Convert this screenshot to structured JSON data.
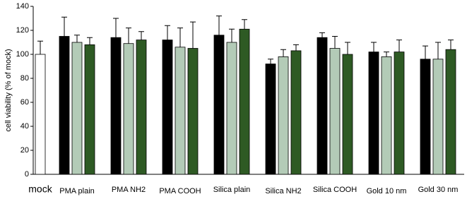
{
  "chart_data": {
    "type": "bar",
    "y_label": "cell viability (% of mock)",
    "categories": [
      "mock",
      "PMA plain",
      "PMA NH2",
      "PMA COOH",
      "Silica plain",
      "Silica NH2",
      "Silica COOH",
      "Gold 10 nm",
      "Gold 30 nm"
    ],
    "series": [
      {
        "color": "#ffffff",
        "values": [
          100,
          null,
          null,
          null,
          null,
          null,
          null,
          null,
          null
        ],
        "errors": [
          11,
          null,
          null,
          null,
          null,
          null,
          null,
          null,
          null
        ]
      },
      {
        "color": "#000000",
        "values": [
          null,
          115,
          114,
          112,
          116,
          92,
          114,
          102,
          96
        ],
        "errors": [
          null,
          16,
          16,
          12,
          16,
          4,
          4,
          8,
          11
        ]
      },
      {
        "color": "#b3cbb7",
        "values": [
          null,
          110,
          109,
          106,
          110,
          98,
          105,
          98,
          96
        ],
        "errors": [
          null,
          6,
          13,
          16,
          11,
          6,
          10,
          4,
          14
        ]
      },
      {
        "color": "#2e5a24",
        "values": [
          null,
          108,
          112,
          105,
          121,
          103,
          100,
          102,
          104
        ],
        "errors": [
          null,
          6,
          7,
          22,
          8,
          5,
          10,
          10,
          8
        ]
      }
    ],
    "ylim": [
      0,
      140
    ],
    "yticks": [
      0,
      20,
      40,
      60,
      80,
      100,
      120,
      140
    ],
    "grid": false
  }
}
